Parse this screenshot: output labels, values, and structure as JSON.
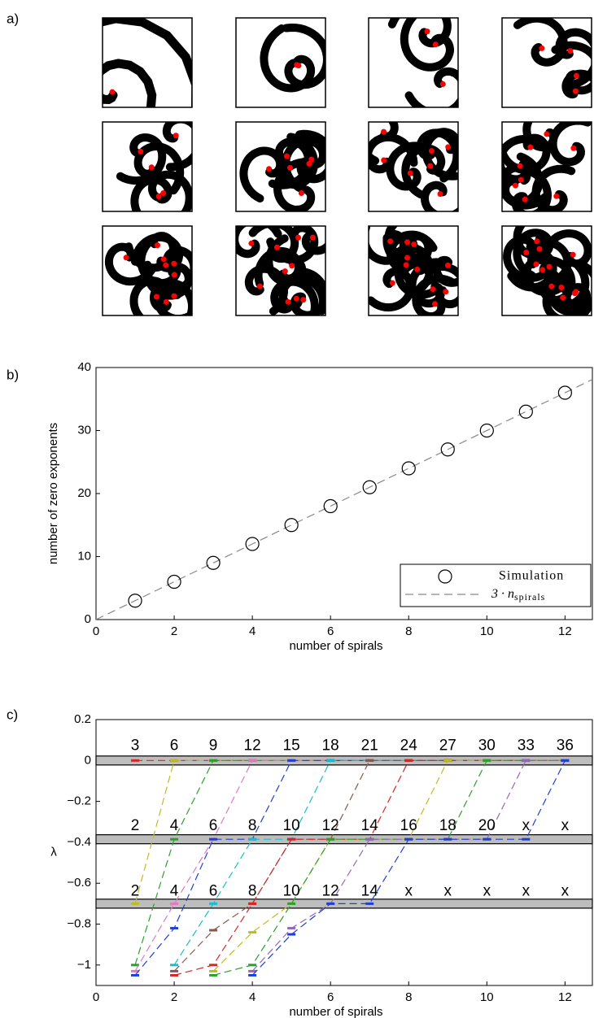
{
  "panel_labels": [
    "a)",
    "b)",
    "c)"
  ],
  "chart_data": [
    {
      "type": "scatter",
      "x": [
        1,
        2,
        3,
        4,
        5,
        6,
        7,
        8,
        9,
        10,
        11,
        12
      ],
      "series": [
        {
          "name": "Simulation",
          "color": "#000000",
          "values": [
            3,
            6,
            9,
            12,
            15,
            18,
            21,
            24,
            27,
            30,
            33,
            36
          ]
        }
      ],
      "fit": {
        "name": "3 · n",
        "name_subscript": "spirals",
        "slope": 3,
        "color": "#888888"
      },
      "xlabel": "number of spirals",
      "ylabel": "number of zero exponents",
      "xlim": [
        0,
        12.7
      ],
      "ylim": [
        0,
        40
      ],
      "xticks": [
        0,
        2,
        4,
        6,
        8,
        10,
        12
      ],
      "yticks": [
        0,
        10,
        20,
        30,
        40
      ],
      "legend": "lower right"
    },
    {
      "type": "line",
      "x": [
        1,
        2,
        3,
        4,
        5,
        6,
        7,
        8,
        9,
        10,
        11,
        12
      ],
      "series": [
        {
          "color": "#d62728",
          "values": [
            0,
            0,
            0,
            0,
            0,
            0,
            0,
            0,
            0,
            0,
            0,
            0
          ]
        },
        {
          "color": "#bcbd22",
          "values": [
            -0.7,
            0,
            0,
            0,
            0,
            0,
            0,
            0,
            0,
            0,
            0,
            0
          ]
        },
        {
          "color": "#2ca02c",
          "values": [
            -1.0,
            -0.385,
            0,
            0,
            0,
            0,
            0,
            0,
            0,
            0,
            0,
            0
          ]
        },
        {
          "color": "#e377c2",
          "values": [
            -1.03,
            -0.7,
            -0.385,
            0,
            0,
            0,
            0,
            0,
            0,
            0,
            0,
            0
          ]
        },
        {
          "color": "#1f3fd6",
          "values": [
            -1.05,
            -0.82,
            -0.385,
            -0.385,
            0,
            0,
            0,
            0,
            0,
            0,
            0,
            0
          ]
        },
        {
          "color": "#17becf",
          "values": [
            null,
            -1.0,
            -0.7,
            -0.385,
            -0.385,
            0,
            0,
            0,
            0,
            0,
            0,
            0
          ]
        },
        {
          "color": "#8c564b",
          "values": [
            null,
            -1.03,
            -0.83,
            -0.7,
            -0.385,
            -0.385,
            0,
            0,
            0,
            0,
            0,
            0
          ]
        },
        {
          "color": "#d62728",
          "values": [
            null,
            -1.05,
            -1.0,
            -0.7,
            -0.385,
            -0.385,
            -0.385,
            0,
            0,
            0,
            0,
            0
          ]
        },
        {
          "color": "#bcbd22",
          "values": [
            null,
            null,
            -1.03,
            -0.84,
            -0.7,
            -0.385,
            -0.385,
            -0.385,
            0,
            0,
            0,
            0
          ]
        },
        {
          "color": "#2ca02c",
          "values": [
            null,
            null,
            -1.05,
            -1.0,
            -0.7,
            -0.385,
            -0.385,
            -0.385,
            -0.385,
            0,
            0,
            0
          ]
        },
        {
          "color": "#9467bd",
          "values": [
            null,
            null,
            null,
            -1.03,
            -0.82,
            -0.7,
            -0.385,
            -0.385,
            -0.385,
            -0.385,
            0,
            0
          ]
        },
        {
          "color": "#1f3fd6",
          "values": [
            null,
            null,
            null,
            -1.05,
            -0.85,
            -0.7,
            -0.7,
            -0.385,
            -0.385,
            -0.385,
            -0.385,
            0
          ]
        }
      ],
      "bands": [
        {
          "center": 0,
          "halfwidth": 0.022
        },
        {
          "center": -0.385,
          "halfwidth": 0.022
        },
        {
          "center": -0.7,
          "halfwidth": 0.022
        }
      ],
      "annotations": [
        {
          "y": 0.07,
          "labels": [
            "3",
            "6",
            "9",
            "12",
            "15",
            "18",
            "21",
            "24",
            "27",
            "30",
            "33",
            "36"
          ]
        },
        {
          "y": -0.32,
          "labels": [
            "2",
            "4",
            "6",
            "8",
            "10",
            "12",
            "14",
            "16",
            "18",
            "20",
            "x",
            "x"
          ]
        },
        {
          "y": -0.64,
          "labels": [
            "2",
            "4",
            "6",
            "8",
            "10",
            "12",
            "14",
            "x",
            "x",
            "x",
            "x",
            "x"
          ]
        }
      ],
      "xlabel": "number of spirals",
      "ylabel": "λ",
      "xlim": [
        0,
        12.7
      ],
      "ylim": [
        -1.1,
        0.2
      ],
      "xticks": [
        0,
        2,
        4,
        6,
        8,
        10,
        12
      ],
      "yticks": [
        {
          "value": -1,
          "label": "−1"
        },
        {
          "value": -0.8,
          "label": "−0.8"
        },
        {
          "value": -0.6,
          "label": "−0.6"
        },
        {
          "value": -0.4,
          "label": "−0.4"
        },
        {
          "value": -0.2,
          "label": "−0.2"
        },
        0,
        0.2
      ]
    }
  ]
}
